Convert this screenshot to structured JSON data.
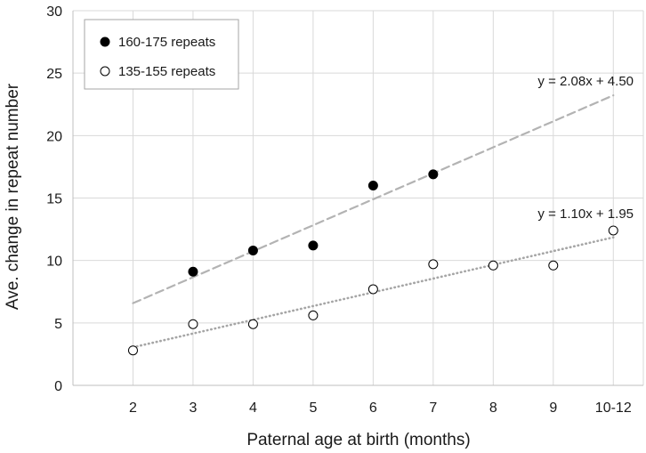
{
  "chart_data": {
    "type": "scatter",
    "title": "",
    "xlabel": "Paternal age at birth (months)",
    "ylabel": "Ave. change in repeat number",
    "categories": [
      "2",
      "3",
      "4",
      "5",
      "6",
      "7",
      "8",
      "9",
      "10-12"
    ],
    "ylim": [
      0,
      30
    ],
    "yticks": [
      0,
      5,
      10,
      15,
      20,
      25,
      30
    ],
    "grid": true,
    "legend_position": "top-left",
    "series": [
      {
        "name": "160-175 repeats",
        "marker": "filled-circle",
        "color": "#000000",
        "x": [
          "3",
          "4",
          "5",
          "6",
          "7"
        ],
        "y": [
          9.1,
          10.8,
          11.2,
          16.0,
          16.9
        ],
        "trendline": {
          "equation": "y = 2.08x + 4.50",
          "slope": 2.08,
          "intercept": 4.5,
          "style": "dashed",
          "color": "#b3b3b3",
          "from_category": "2",
          "to_category": "10-12"
        }
      },
      {
        "name": "135-155 repeats",
        "marker": "open-circle",
        "color": "#000000",
        "x": [
          "2",
          "3",
          "4",
          "5",
          "6",
          "7",
          "8",
          "9",
          "10-12"
        ],
        "y": [
          2.8,
          4.9,
          4.9,
          5.6,
          7.7,
          9.7,
          9.6,
          9.6,
          12.4
        ],
        "trendline": {
          "equation": "y = 1.10x + 1.95",
          "slope": 1.1,
          "intercept": 1.95,
          "style": "dotted",
          "color": "#a6a6a6",
          "from_category": "2",
          "to_category": "10-12"
        }
      }
    ]
  }
}
